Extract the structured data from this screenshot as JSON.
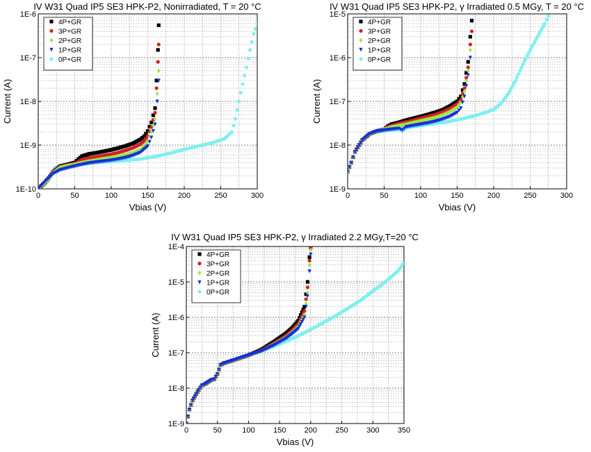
{
  "figure": {
    "panels": [
      {
        "title": "IV W31 Quad IP5 SE3 HPK-P2, Nonirradiated, T = 20 °C"
      },
      {
        "title": "IV W31 Quad IP5 SE3 HPK-P2, γ Irradiated 0.5 MGy, T = 20 °C"
      },
      {
        "title": "IV W31 Quad IP5 SE3 HPK-P2, γ Irradiated 2.2 MGy,T=20 °C"
      }
    ]
  },
  "colors": {
    "4P+GR": "#000000",
    "3P+GR": "#d61f1f",
    "2P+GR": "#9be84a",
    "1P+GR": "#1530d8",
    "0P+GR": "#7ff0ee"
  },
  "chart_data": [
    {
      "type": "scatter",
      "title": "IV W31 Quad IP5 SE3 HPK-P2, Nonirradiated, T = 20 °C",
      "xlabel": "Vbias (V)",
      "ylabel": "Current (A)",
      "xlim": [
        0,
        300
      ],
      "ylim": [
        1e-10,
        1e-06
      ],
      "yscale": "log",
      "grid": true,
      "legend_position": "top-left",
      "xticks": [
        "0",
        "50",
        "100",
        "150",
        "200",
        "250",
        "300"
      ],
      "yticks": [
        "1E-10",
        "1E-9",
        "1E-8",
        "1E-7",
        "1E-6"
      ],
      "series": [
        {
          "name": "4P+GR",
          "marker": "square",
          "x": [
            0,
            10,
            20,
            30,
            40,
            50,
            55,
            60,
            70,
            80,
            90,
            100,
            110,
            120,
            130,
            140,
            145,
            150,
            155,
            160,
            162,
            164,
            165
          ],
          "y": [
            1e-10,
            1.4e-10,
            2.4e-10,
            3.3e-10,
            3.6e-10,
            4e-10,
            4.8e-10,
            5.6e-10,
            6.3e-10,
            6.7e-10,
            7.2e-10,
            7.8e-10,
            8.6e-10,
            9.6e-10,
            1.1e-09,
            1.35e-09,
            1.6e-09,
            2.1e-09,
            3.3e-09,
            7e-09,
            3e-08,
            1.5e-07,
            5.5e-07
          ]
        },
        {
          "name": "3P+GR",
          "marker": "circle",
          "x": [
            0,
            10,
            20,
            30,
            40,
            50,
            55,
            60,
            70,
            80,
            90,
            100,
            110,
            120,
            130,
            140,
            145,
            150,
            155,
            160,
            162,
            164,
            165
          ],
          "y": [
            1e-10,
            1.4e-10,
            2.4e-10,
            3.2e-10,
            3.5e-10,
            3.8e-10,
            4.2e-10,
            4.7e-10,
            5.1e-10,
            5.4e-10,
            5.8e-10,
            6.2e-10,
            6.8e-10,
            7.6e-10,
            8.7e-10,
            1.05e-09,
            1.25e-09,
            1.6e-09,
            2.6e-09,
            5.5e-09,
            2e-08,
            8e-08,
            2e-07
          ]
        },
        {
          "name": "2P+GR",
          "marker": "diamond",
          "x": [
            0,
            10,
            20,
            30,
            40,
            50,
            60,
            70,
            80,
            90,
            100,
            110,
            120,
            130,
            140,
            150,
            155,
            160,
            163,
            165
          ],
          "y": [
            1e-10,
            1.4e-10,
            2.3e-10,
            3.1e-10,
            3.4e-10,
            3.6e-10,
            4e-10,
            4.3e-10,
            4.6e-10,
            4.9e-10,
            5.2e-10,
            5.6e-10,
            6.1e-10,
            6.8e-10,
            8e-10,
            1.2e-09,
            2e-09,
            4e-09,
            1.5e-08,
            5e-08
          ]
        },
        {
          "name": "1P+GR",
          "marker": "triangle",
          "x": [
            0,
            10,
            20,
            30,
            40,
            50,
            60,
            70,
            80,
            90,
            100,
            110,
            120,
            130,
            140,
            150,
            155,
            160,
            163,
            165
          ],
          "y": [
            1e-10,
            1.5e-10,
            2.2e-10,
            2.7e-10,
            3e-10,
            3.3e-10,
            3.6e-10,
            3.9e-10,
            4.1e-10,
            4.3e-10,
            4.5e-10,
            4.8e-10,
            5.2e-10,
            5.8e-10,
            6.8e-10,
            9.5e-10,
            1.5e-09,
            3e-09,
            1e-08,
            3e-08
          ]
        },
        {
          "name": "0P+GR",
          "marker": "circle",
          "x": [
            0,
            10,
            20,
            22,
            30,
            40,
            60,
            80,
            100,
            120,
            140,
            160,
            180,
            200,
            220,
            240,
            255,
            265,
            270,
            275,
            280,
            285,
            290,
            295,
            300
          ],
          "y": [
            1e-10,
            1.5e-10,
            2.3e-10,
            3e-10,
            3.2e-10,
            3.4e-10,
            3.7e-10,
            4e-10,
            4.2e-10,
            4.5e-10,
            4.8e-10,
            5.5e-10,
            6.5e-10,
            8e-10,
            9.6e-10,
            1.15e-09,
            1.4e-09,
            2e-09,
            4e-09,
            1e-08,
            2.5e-08,
            6e-08,
            1.5e-07,
            3.5e-07,
            6e-07
          ]
        }
      ]
    },
    {
      "type": "scatter",
      "title": "IV W31 Quad IP5 SE3 HPK-P2, γ Irradiated 0.5 MGy, T = 20 °C",
      "xlabel": "Vbias (V)",
      "ylabel": "Current (A)",
      "xlim": [
        0,
        300
      ],
      "ylim": [
        1e-09,
        1e-05
      ],
      "yscale": "log",
      "grid": true,
      "legend_position": "top-left",
      "xticks": [
        "0",
        "50",
        "100",
        "150",
        "200",
        "250",
        "300"
      ],
      "yticks": [
        "1E-9",
        "1E-8",
        "1E-7",
        "1E-6",
        "1E-5"
      ],
      "series": [
        {
          "name": "4P+GR",
          "marker": "square",
          "x": [
            0,
            5,
            10,
            20,
            30,
            40,
            50,
            55,
            60,
            70,
            80,
            90,
            100,
            110,
            120,
            130,
            140,
            150,
            155,
            160,
            165,
            168,
            170
          ],
          "y": [
            2.5e-09,
            4e-09,
            7e-09,
            1.3e-08,
            1.8e-08,
            2.1e-08,
            2.3e-08,
            2.7e-08,
            3e-08,
            3.3e-08,
            3.7e-08,
            4.1e-08,
            4.5e-08,
            5e-08,
            5.6e-08,
            6.4e-08,
            7.8e-08,
            1e-07,
            1.3e-07,
            2.5e-07,
            8e-07,
            3e-06,
            7e-06
          ]
        },
        {
          "name": "3P+GR",
          "marker": "circle",
          "x": [
            0,
            5,
            10,
            20,
            30,
            40,
            50,
            55,
            60,
            70,
            80,
            90,
            100,
            110,
            120,
            130,
            140,
            150,
            155,
            160,
            165,
            168,
            170
          ],
          "y": [
            2.5e-09,
            4e-09,
            7e-09,
            1.3e-08,
            1.8e-08,
            2.1e-08,
            2.3e-08,
            2.6e-08,
            2.8e-08,
            3.1e-08,
            3.4e-08,
            3.7e-08,
            4.1e-08,
            4.5e-08,
            5e-08,
            5.7e-08,
            6.8e-08,
            8.7e-08,
            1.1e-07,
            2e-07,
            6e-07,
            2e-06,
            4e-06
          ]
        },
        {
          "name": "2P+GR",
          "marker": "diamond",
          "x": [
            0,
            5,
            10,
            20,
            30,
            40,
            50,
            60,
            70,
            80,
            90,
            100,
            110,
            120,
            130,
            140,
            150,
            155,
            160,
            165,
            168
          ],
          "y": [
            2.5e-09,
            4e-09,
            7e-09,
            1.3e-08,
            1.8e-08,
            2.1e-08,
            2.3e-08,
            2.6e-08,
            2.8e-08,
            3e-08,
            3.3e-08,
            3.6e-08,
            3.9e-08,
            4.3e-08,
            4.9e-08,
            5.8e-08,
            7.4e-08,
            9.5e-08,
            1.7e-07,
            5e-07,
            1.5e-06
          ]
        },
        {
          "name": "1P+GR",
          "marker": "triangle",
          "x": [
            0,
            5,
            10,
            20,
            30,
            40,
            50,
            60,
            70,
            75,
            80,
            90,
            100,
            110,
            120,
            130,
            140,
            150,
            155,
            160,
            165,
            168
          ],
          "y": [
            2.5e-09,
            4e-09,
            7e-09,
            1.3e-08,
            1.8e-08,
            2.1e-08,
            2.2e-08,
            2.3e-08,
            2.4e-08,
            2.2e-08,
            2.6e-08,
            2.8e-08,
            3e-08,
            3.2e-08,
            3.5e-08,
            3.9e-08,
            4.5e-08,
            5.6e-08,
            7e-08,
            1.3e-07,
            4e-07,
            1e-06
          ]
        },
        {
          "name": "0P+GR",
          "marker": "circle",
          "x": [
            0,
            5,
            10,
            20,
            30,
            40,
            50,
            60,
            70,
            75,
            80,
            100,
            120,
            140,
            160,
            180,
            200,
            210,
            220,
            230,
            240,
            250,
            260,
            270,
            275
          ],
          "y": [
            2.5e-09,
            4e-09,
            7e-09,
            1.3e-08,
            1.8e-08,
            2e-08,
            2.1e-08,
            2.2e-08,
            2.3e-08,
            2.1e-08,
            2.5e-08,
            2.8e-08,
            3.1e-08,
            3.5e-08,
            4.1e-08,
            5e-08,
            6.5e-08,
            9e-08,
            1.5e-07,
            3e-07,
            7e-07,
            1.5e-06,
            3e-06,
            6e-06,
            9e-06
          ]
        }
      ]
    },
    {
      "type": "scatter",
      "title": "IV W31 Quad IP5 SE3 HPK-P2, γ Irradiated 2.2 MGy,T=20 °C",
      "xlabel": "Vbias (V)",
      "ylabel": "Current (A)",
      "xlim": [
        0,
        350
      ],
      "ylim": [
        1e-09,
        0.0001
      ],
      "yscale": "log",
      "grid": true,
      "legend_position": "top-left",
      "xticks": [
        "0",
        "50",
        "100",
        "150",
        "200",
        "250",
        "300",
        "350"
      ],
      "yticks": [
        "1E-9",
        "1E-8",
        "1E-7",
        "1E-6",
        "1E-5",
        "1E-4"
      ],
      "series": [
        {
          "name": "4P+GR",
          "marker": "square",
          "x": [
            0,
            5,
            10,
            20,
            25,
            30,
            40,
            45,
            50,
            55,
            60,
            80,
            100,
            120,
            140,
            160,
            170,
            180,
            190,
            195,
            198,
            200
          ],
          "y": [
            1e-09,
            2.5e-09,
            4.5e-09,
            9e-09,
            1.2e-08,
            1.3e-08,
            1.7e-08,
            1.8e-08,
            2.5e-08,
            4.5e-08,
            5e-08,
            6.5e-08,
            8.5e-08,
            1.2e-07,
            2e-07,
            3.5e-07,
            5e-07,
            8e-07,
            2e-06,
            1e-05,
            5e-05,
            0.0001
          ]
        },
        {
          "name": "3P+GR",
          "marker": "circle",
          "x": [
            0,
            5,
            10,
            20,
            25,
            30,
            40,
            45,
            50,
            55,
            60,
            80,
            100,
            120,
            140,
            160,
            170,
            180,
            190,
            195,
            198,
            200
          ],
          "y": [
            1e-09,
            2.5e-09,
            4.5e-09,
            9e-09,
            1.2e-08,
            1.3e-08,
            1.7e-08,
            1.8e-08,
            2.5e-08,
            4.5e-08,
            5e-08,
            6.5e-08,
            8.5e-08,
            1.15e-07,
            1.8e-07,
            3e-07,
            4.2e-07,
            6.5e-07,
            1.5e-06,
            7e-06,
            4e-05,
            9e-05
          ]
        },
        {
          "name": "2P+GR",
          "marker": "diamond",
          "x": [
            0,
            5,
            10,
            20,
            25,
            30,
            40,
            45,
            50,
            55,
            60,
            80,
            100,
            120,
            140,
            160,
            170,
            180,
            190,
            195,
            198,
            200
          ],
          "y": [
            1e-09,
            2.5e-09,
            4.5e-09,
            9e-09,
            1.2e-08,
            1.3e-08,
            1.7e-08,
            1.8e-08,
            2.5e-08,
            4.5e-08,
            5e-08,
            6.5e-08,
            8.5e-08,
            1.1e-07,
            1.7e-07,
            2.7e-07,
            3.8e-07,
            5.5e-07,
            1.2e-06,
            5e-06,
            3e-05,
            8e-05
          ]
        },
        {
          "name": "1P+GR",
          "marker": "triangle",
          "x": [
            0,
            5,
            10,
            20,
            25,
            30,
            40,
            45,
            50,
            55,
            60,
            80,
            100,
            120,
            140,
            160,
            170,
            180,
            190,
            195,
            198,
            200
          ],
          "y": [
            1e-09,
            2.5e-09,
            4.5e-09,
            9e-09,
            1.2e-08,
            1.3e-08,
            1.7e-08,
            1.8e-08,
            2.5e-08,
            4.5e-08,
            5e-08,
            6.5e-08,
            8.5e-08,
            1.1e-07,
            1.6e-07,
            2.5e-07,
            3.4e-07,
            4.8e-07,
            1e-06,
            4e-06,
            2e-05,
            6e-05
          ]
        },
        {
          "name": "0P+GR",
          "marker": "circle",
          "x": [
            0,
            5,
            10,
            20,
            25,
            30,
            40,
            45,
            50,
            55,
            60,
            80,
            100,
            120,
            140,
            160,
            180,
            200,
            220,
            240,
            260,
            280,
            300,
            320,
            340,
            350
          ],
          "y": [
            1e-09,
            2.5e-09,
            4.5e-09,
            9e-09,
            1.2e-08,
            1.3e-08,
            1.7e-08,
            1.8e-08,
            2.5e-08,
            4.5e-08,
            5e-08,
            6.5e-08,
            8.5e-08,
            1.1e-07,
            1.5e-07,
            2.1e-07,
            3e-07,
            4.5e-07,
            7e-07,
            1.1e-06,
            1.8e-06,
            3e-06,
            5.5e-06,
            1e-05,
            2e-05,
            3.5e-05
          ]
        }
      ]
    }
  ]
}
